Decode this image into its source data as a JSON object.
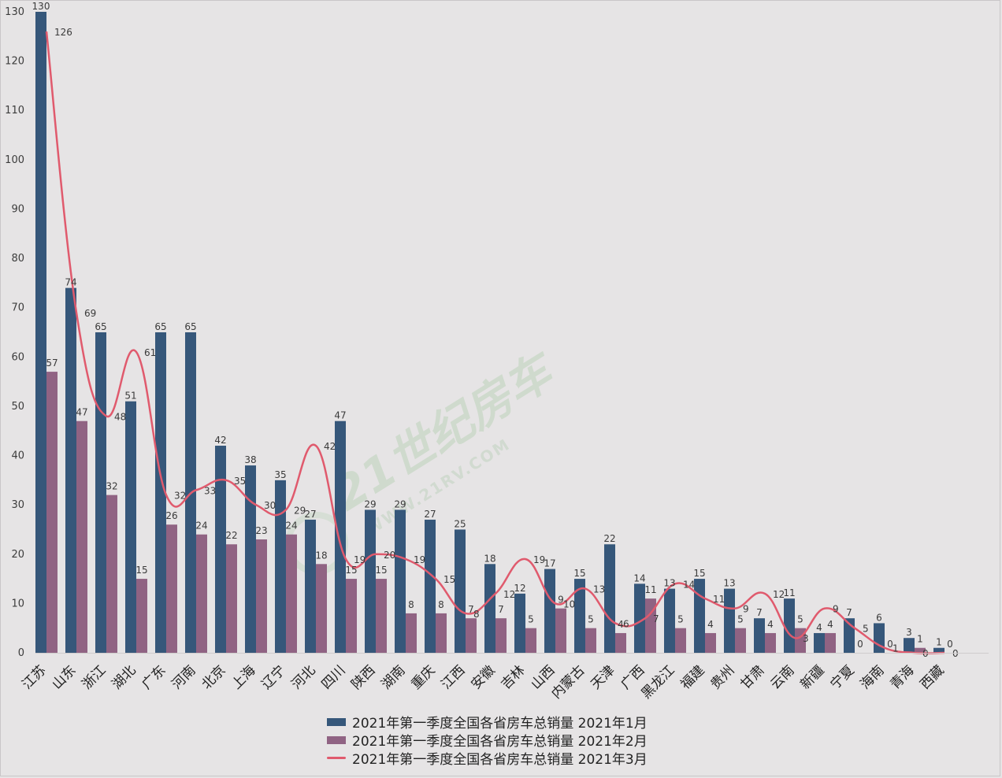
{
  "colors": {
    "s1": "#36577a",
    "s2": "#906383",
    "s3": "#e05a6d"
  },
  "watermark": {
    "brand": "21世纪房车",
    "url": "WWW.21RV.COM"
  },
  "chart_data": {
    "type": "bar",
    "ylim": [
      0,
      130
    ],
    "yticks": [
      0,
      10,
      20,
      30,
      40,
      50,
      60,
      70,
      80,
      90,
      100,
      110,
      120,
      130
    ],
    "grid": false,
    "legend_position": "bottom",
    "categories": [
      "江苏",
      "山东",
      "浙江",
      "湖北",
      "广东",
      "河南",
      "北京",
      "上海",
      "辽宁",
      "河北",
      "四川",
      "陕西",
      "湖南",
      "重庆",
      "江西",
      "安徽",
      "吉林",
      "山西",
      "内蒙古",
      "天津",
      "广西",
      "黑龙江",
      "福建",
      "贵州",
      "甘肃",
      "云南",
      "新疆",
      "宁夏",
      "海南",
      "青海",
      "西藏"
    ],
    "series": [
      {
        "name": "2021年第一季度全国各省房车总销量 2021年1月",
        "type": "bar",
        "values": [
          130,
          74,
          65,
          51,
          65,
          65,
          42,
          38,
          35,
          27,
          47,
          29,
          29,
          27,
          25,
          18,
          12,
          17,
          15,
          22,
          14,
          13,
          15,
          13,
          7,
          11,
          4,
          7,
          6,
          3,
          1
        ]
      },
      {
        "name": "2021年第一季度全国各省房车总销量 2021年2月",
        "type": "bar",
        "values": [
          57,
          47,
          32,
          15,
          26,
          24,
          22,
          23,
          24,
          18,
          15,
          15,
          8,
          8,
          7,
          7,
          5,
          9,
          5,
          4,
          11,
          5,
          4,
          5,
          4,
          5,
          4,
          0,
          0,
          1,
          0
        ]
      },
      {
        "name": "2021年第一季度全国各省房车总销量 2021年3月",
        "type": "line",
        "values": [
          126,
          69,
          48,
          61,
          32,
          33,
          35,
          30,
          29,
          42,
          19,
          20,
          19,
          15,
          8,
          12,
          19,
          10,
          13,
          6,
          7,
          14,
          11,
          9,
          12,
          3,
          9,
          5,
          1,
          0,
          0
        ]
      }
    ]
  }
}
